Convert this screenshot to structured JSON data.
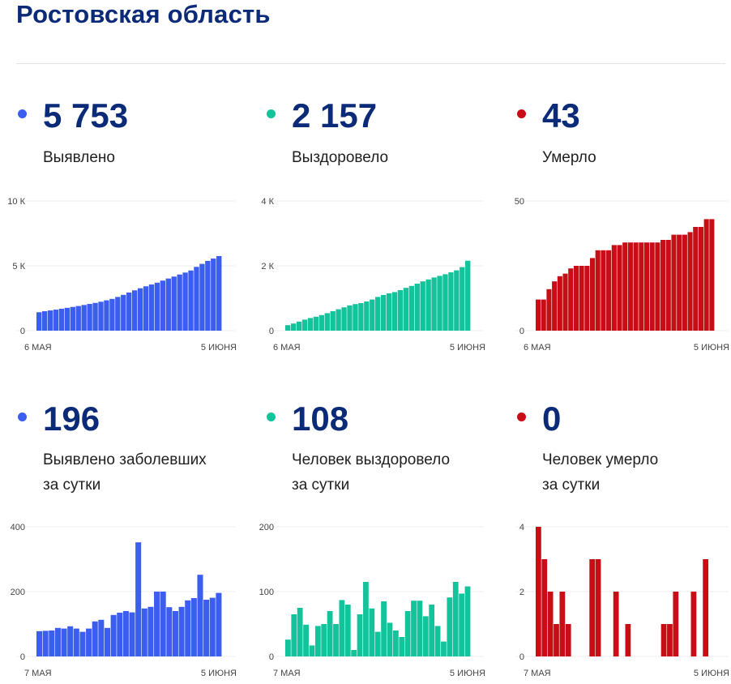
{
  "page": {
    "title": "Ростовская область"
  },
  "colors": {
    "blue": "#3b5ef0",
    "green": "#13c39b",
    "red": "#c80d16",
    "title": "#0b2a78"
  },
  "panels": [
    {
      "value": "5 753",
      "label_lines": [
        "Выявлено"
      ],
      "color": "blue"
    },
    {
      "value": "2 157",
      "label_lines": [
        "Выздоровело"
      ],
      "color": "green"
    },
    {
      "value": "43",
      "label_lines": [
        "Умерло"
      ],
      "color": "red"
    },
    {
      "value": "196",
      "label_lines": [
        "Выявлено заболевших",
        "за сутки"
      ],
      "color": "blue"
    },
    {
      "value": "108",
      "label_lines": [
        "Человек выздоровело",
        "за сутки"
      ],
      "color": "green"
    },
    {
      "value": "0",
      "label_lines": [
        "Человек умерло",
        "за сутки"
      ],
      "color": "red"
    }
  ],
  "chart_data": [
    {
      "type": "bar",
      "ylim": [
        0,
        10000
      ],
      "yticks": [
        {
          "value": 0,
          "label": "0"
        },
        {
          "value": 5000,
          "label": "5 К"
        },
        {
          "value": 10000,
          "label": "10 К"
        }
      ],
      "xlabels": [
        "6 МАЯ",
        "5 ИЮНЯ"
      ],
      "series": [
        {
          "values": [
            1420,
            1500,
            1560,
            1620,
            1690,
            1760,
            1830,
            1900,
            1980,
            2060,
            2140,
            2230,
            2340,
            2450,
            2600,
            2760,
            2940,
            3110,
            3270,
            3420,
            3560,
            3700,
            3860,
            4020,
            4170,
            4330,
            4480,
            4640,
            4920,
            5150,
            5380,
            5560,
            5753
          ]
        }
      ]
    },
    {
      "type": "bar",
      "ylim": [
        0,
        4000
      ],
      "yticks": [
        {
          "value": 0,
          "label": "0"
        },
        {
          "value": 2000,
          "label": "2 К"
        },
        {
          "value": 4000,
          "label": "4 К"
        }
      ],
      "xlabels": [
        "6 МАЯ",
        "5 ИЮНЯ"
      ],
      "series": [
        {
          "values": [
            170,
            220,
            280,
            340,
            390,
            430,
            480,
            540,
            600,
            660,
            720,
            780,
            820,
            850,
            900,
            960,
            1040,
            1100,
            1150,
            1190,
            1250,
            1320,
            1380,
            1450,
            1520,
            1580,
            1640,
            1690,
            1740,
            1800,
            1860,
            1960,
            2157
          ]
        }
      ]
    },
    {
      "type": "bar",
      "ylim": [
        0,
        50
      ],
      "yticks": [
        {
          "value": 0,
          "label": "0"
        },
        {
          "value": 50,
          "label": "50"
        }
      ],
      "xlabels": [
        "6 МАЯ",
        "5 ИЮНЯ"
      ],
      "series": [
        {
          "values": [
            12,
            12,
            16,
            19,
            21,
            22,
            24,
            25,
            25,
            25,
            28,
            31,
            31,
            31,
            33,
            33,
            34,
            34,
            34,
            34,
            34,
            34,
            34,
            35,
            35,
            37,
            37,
            37,
            38,
            40,
            40,
            43,
            43
          ]
        }
      ]
    },
    {
      "type": "bar",
      "ylim": [
        0,
        400
      ],
      "yticks": [
        {
          "value": 0,
          "label": "0"
        },
        {
          "value": 200,
          "label": "200"
        },
        {
          "value": 400,
          "label": "400"
        }
      ],
      "xlabels": [
        "7 МАЯ",
        "5 ИЮНЯ"
      ],
      "series": [
        {
          "values": [
            78,
            79,
            80,
            88,
            86,
            93,
            86,
            76,
            86,
            108,
            113,
            88,
            128,
            135,
            140,
            136,
            352,
            148,
            153,
            200,
            200,
            152,
            140,
            153,
            173,
            180,
            252,
            175,
            181,
            196
          ]
        }
      ]
    },
    {
      "type": "bar",
      "ylim": [
        0,
        200
      ],
      "yticks": [
        {
          "value": 0,
          "label": "0"
        },
        {
          "value": 100,
          "label": "100"
        },
        {
          "value": 200,
          "label": "200"
        }
      ],
      "xlabels": [
        "7 МАЯ",
        "5 ИЮНЯ"
      ],
      "series": [
        {
          "values": [
            26,
            65,
            75,
            49,
            17,
            47,
            50,
            70,
            50,
            87,
            80,
            10,
            65,
            115,
            74,
            38,
            85,
            52,
            40,
            30,
            70,
            86,
            86,
            62,
            80,
            47,
            23,
            91,
            115,
            97,
            108
          ]
        }
      ]
    },
    {
      "type": "bar",
      "ylim": [
        0,
        4
      ],
      "yticks": [
        {
          "value": 0,
          "label": "0"
        },
        {
          "value": 2,
          "label": "2"
        },
        {
          "value": 4,
          "label": "4"
        }
      ],
      "xlabels": [
        "7 МАЯ",
        "5 ИЮНЯ"
      ],
      "series": [
        {
          "values": [
            4,
            3,
            2,
            1,
            2,
            1,
            0,
            0,
            0,
            3,
            3,
            0,
            0,
            2,
            0,
            1,
            0,
            0,
            0,
            0,
            0,
            1,
            1,
            2,
            0,
            0,
            2,
            0,
            3,
            0
          ]
        }
      ]
    }
  ]
}
